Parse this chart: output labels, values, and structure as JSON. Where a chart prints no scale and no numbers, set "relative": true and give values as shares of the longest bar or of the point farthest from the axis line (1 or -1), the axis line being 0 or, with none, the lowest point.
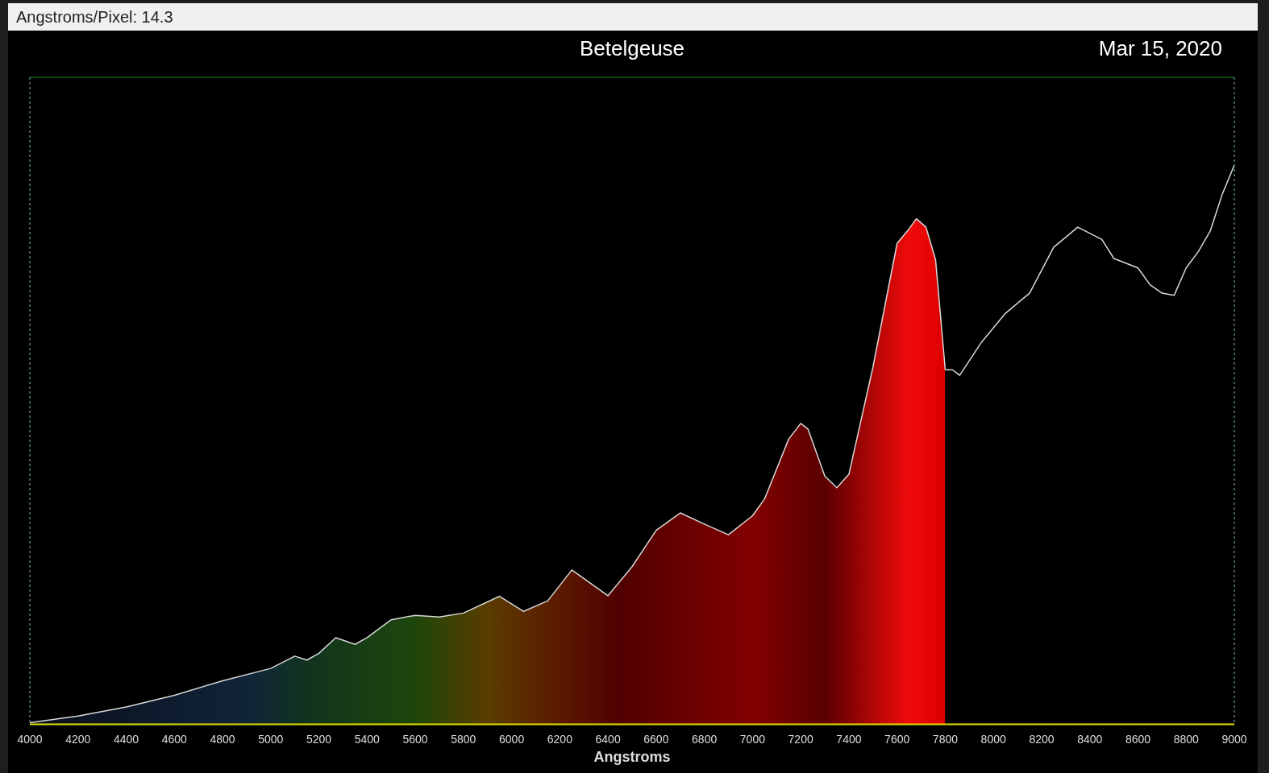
{
  "chart_data": {
    "type": "line",
    "title": "Betelgeuse",
    "xlabel": "Angstroms",
    "relative": true,
    "legend": false,
    "grid": false,
    "annotations": [
      "Angstroms/Pixel: 14.3",
      "Mar 15, 2020"
    ],
    "xlim": [
      4000,
      9000
    ],
    "xticks": [
      4000,
      4200,
      4400,
      4600,
      4800,
      5000,
      5200,
      5400,
      5600,
      5800,
      6000,
      6200,
      6400,
      6600,
      6800,
      7000,
      7200,
      7400,
      7600,
      7800,
      8000,
      8200,
      8400,
      8600,
      8800,
      9000
    ],
    "series": [
      {
        "type": "area",
        "color": "#d8d8d8",
        "x": [
          4000,
          4200,
          4400,
          4600,
          4800,
          5000,
          5100,
          5150,
          5200,
          5270,
          5350,
          5400,
          5500,
          5600,
          5700,
          5800,
          5950,
          6050,
          6150,
          6250,
          6400,
          6500,
          6600,
          6700,
          6800,
          6900,
          7000,
          7050,
          7150,
          7200,
          7230,
          7300,
          7350,
          7400,
          7500,
          7600,
          7650,
          7680,
          7720,
          7760,
          7800
        ],
        "values": [
          0.003,
          0.015,
          0.031,
          0.052,
          0.078,
          0.1,
          0.122,
          0.115,
          0.127,
          0.155,
          0.143,
          0.155,
          0.187,
          0.195,
          0.192,
          0.199,
          0.229,
          0.202,
          0.221,
          0.276,
          0.23,
          0.282,
          0.347,
          0.378,
          0.358,
          0.339,
          0.373,
          0.403,
          0.51,
          0.538,
          0.528,
          0.444,
          0.423,
          0.447,
          0.639,
          0.86,
          0.886,
          0.904,
          0.889,
          0.83,
          0.634
        ]
      },
      {
        "type": "line",
        "color": "#d8d8d8",
        "x": [
          7800,
          7830,
          7860,
          7950,
          8050,
          8150,
          8250,
          8350,
          8450,
          8500,
          8600,
          8650,
          8700,
          8750,
          8800,
          8850,
          8900,
          8950,
          9000
        ],
        "values": [
          0.634,
          0.634,
          0.624,
          0.683,
          0.735,
          0.771,
          0.853,
          0.889,
          0.867,
          0.833,
          0.816,
          0.786,
          0.771,
          0.767,
          0.816,
          0.845,
          0.882,
          0.948,
          1
        ]
      }
    ]
  }
}
